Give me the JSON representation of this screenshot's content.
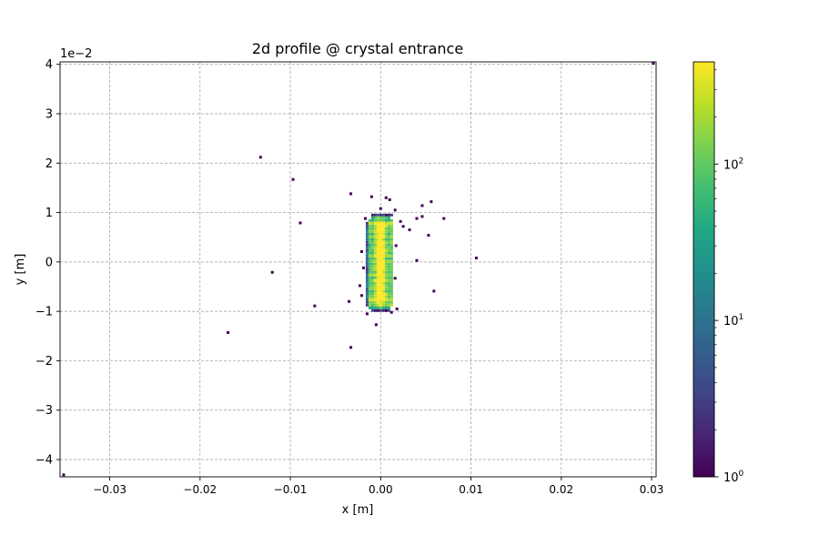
{
  "chart_data": {
    "type": "heatmap",
    "title": "2d profile @ crystal entrance",
    "xlabel": "x [m]",
    "ylabel": "y [m]",
    "y_offset_label": "1e−2",
    "xlim": [
      -0.0355,
      0.0305
    ],
    "ylim": [
      -4.35,
      4.05
    ],
    "xticks": [
      -0.03,
      -0.02,
      -0.01,
      0.0,
      0.01,
      0.02,
      0.03
    ],
    "xtick_labels": [
      "−0.03",
      "−0.02",
      "−0.01",
      "0.00",
      "0.01",
      "0.02",
      "0.03"
    ],
    "yticks": [
      -4,
      -3,
      -2,
      -1,
      0,
      1,
      2,
      3,
      4
    ],
    "ytick_labels": [
      "−4",
      "−3",
      "−2",
      "−1",
      "0",
      "1",
      "2",
      "3",
      "4"
    ],
    "grid": true,
    "colormap": "viridis",
    "colorscale": "log",
    "colorbar_range": [
      1,
      450
    ],
    "colorbar_ticks": [
      {
        "value": 1,
        "base": "10",
        "exp": "0"
      },
      {
        "value": 10,
        "base": "10",
        "exp": "1"
      },
      {
        "value": 100,
        "base": "10",
        "exp": "2"
      }
    ],
    "core": {
      "x_range": [
        -0.0015,
        0.0015
      ],
      "y_range": [
        -1.0,
        0.95
      ],
      "peak_count": 450
    },
    "scatter_counts": [
      {
        "x": -0.0133,
        "y": 2.12,
        "count": 1
      },
      {
        "x": -0.0097,
        "y": 1.67,
        "count": 1
      },
      {
        "x": -0.0089,
        "y": 0.79,
        "count": 1
      },
      {
        "x": -0.012,
        "y": -0.21,
        "count": 1
      },
      {
        "x": -0.0073,
        "y": -0.89,
        "count": 1
      },
      {
        "x": -0.0169,
        "y": -1.43,
        "count": 1
      },
      {
        "x": -0.0033,
        "y": -1.73,
        "count": 1
      },
      {
        "x": -0.0033,
        "y": 1.38,
        "count": 1
      },
      {
        "x": -0.001,
        "y": 1.32,
        "count": 1
      },
      {
        "x": 0.0,
        "y": 1.08,
        "count": 1
      },
      {
        "x": 0.0006,
        "y": 1.3,
        "count": 1
      },
      {
        "x": 0.001,
        "y": 1.26,
        "count": 1
      },
      {
        "x": 0.0016,
        "y": 1.05,
        "count": 1
      },
      {
        "x": 0.0046,
        "y": 1.14,
        "count": 1
      },
      {
        "x": 0.0056,
        "y": 1.22,
        "count": 1
      },
      {
        "x": 0.0046,
        "y": 0.92,
        "count": 1
      },
      {
        "x": 0.004,
        "y": 0.88,
        "count": 1
      },
      {
        "x": 0.007,
        "y": 0.88,
        "count": 1
      },
      {
        "x": 0.0022,
        "y": 0.82,
        "count": 1
      },
      {
        "x": 0.0025,
        "y": 0.72,
        "count": 1
      },
      {
        "x": 0.0032,
        "y": 0.65,
        "count": 1
      },
      {
        "x": 0.0053,
        "y": 0.54,
        "count": 1
      },
      {
        "x": 0.004,
        "y": 0.03,
        "count": 1
      },
      {
        "x": 0.0106,
        "y": 0.08,
        "count": 1
      },
      {
        "x": 0.0059,
        "y": -0.59,
        "count": 1
      },
      {
        "x": -0.0035,
        "y": -0.8,
        "count": 1
      },
      {
        "x": -0.0023,
        "y": -0.48,
        "count": 1
      },
      {
        "x": -0.0021,
        "y": -0.68,
        "count": 1
      },
      {
        "x": -0.0015,
        "y": -1.05,
        "count": 1
      },
      {
        "x": -0.0005,
        "y": -1.27,
        "count": 1
      },
      {
        "x": 0.0012,
        "y": -1.02,
        "count": 1
      },
      {
        "x": 0.0018,
        "y": -0.95,
        "count": 1
      },
      {
        "x": -0.0021,
        "y": 0.21,
        "count": 1
      },
      {
        "x": -0.0017,
        "y": 0.88,
        "count": 1
      },
      {
        "x": -0.0019,
        "y": -0.12,
        "count": 1
      },
      {
        "x": 0.0017,
        "y": 0.33,
        "count": 1
      },
      {
        "x": 0.0016,
        "y": -0.33,
        "count": 1
      },
      {
        "x": -0.0351,
        "y": -4.31,
        "count": 1
      },
      {
        "x": 0.0302,
        "y": 4.02,
        "count": 1
      }
    ]
  }
}
